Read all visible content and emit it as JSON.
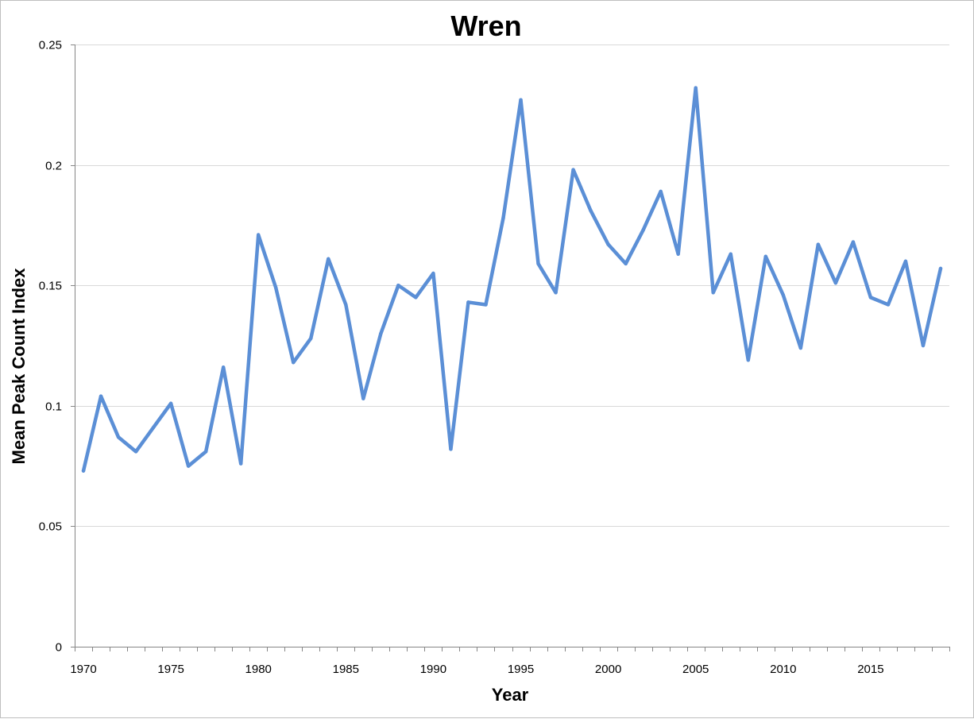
{
  "chart_data": {
    "type": "line",
    "title": "Wren",
    "xlabel": "Year",
    "ylabel": "Mean Peak Count Index",
    "xlim": [
      1970,
      2019
    ],
    "ylim": [
      0,
      0.25
    ],
    "yticks": [
      0,
      0.05,
      0.1,
      0.15,
      0.2,
      0.25
    ],
    "ytick_labels": [
      "0",
      "0.05",
      "0.1",
      "0.15",
      "0.2",
      "0.25"
    ],
    "xticks": [
      1970,
      1975,
      1980,
      1985,
      1990,
      1995,
      2000,
      2005,
      2010,
      2015
    ],
    "xtick_labels": [
      "1970",
      "1975",
      "1980",
      "1985",
      "1990",
      "1995",
      "2000",
      "2005",
      "2010",
      "2015"
    ],
    "grid": "horizontal",
    "legend": "none",
    "line_color": "#5b8fd6",
    "x": [
      1970,
      1971,
      1972,
      1973,
      1974,
      1975,
      1976,
      1977,
      1978,
      1979,
      1980,
      1981,
      1982,
      1983,
      1984,
      1985,
      1986,
      1987,
      1988,
      1989,
      1990,
      1991,
      1992,
      1993,
      1994,
      1995,
      1996,
      1997,
      1998,
      1999,
      2000,
      2001,
      2002,
      2003,
      2004,
      2005,
      2006,
      2007,
      2008,
      2009,
      2010,
      2011,
      2012,
      2013,
      2014,
      2015,
      2016,
      2017,
      2018,
      2019
    ],
    "series": [
      {
        "values": [
          0.073,
          0.104,
          0.087,
          0.081,
          0.091,
          0.101,
          0.075,
          0.081,
          0.116,
          0.076,
          0.171,
          0.149,
          0.118,
          0.128,
          0.161,
          0.142,
          0.103,
          0.13,
          0.15,
          0.145,
          0.155,
          0.082,
          0.143,
          0.142,
          0.178,
          0.227,
          0.159,
          0.147,
          0.198,
          0.181,
          0.167,
          0.159,
          0.173,
          0.189,
          0.163,
          0.232,
          0.147,
          0.163,
          0.119,
          0.162,
          0.146,
          0.124,
          0.167,
          0.151,
          0.168,
          0.145,
          0.142,
          0.16,
          0.125,
          0.157
        ]
      }
    ]
  }
}
